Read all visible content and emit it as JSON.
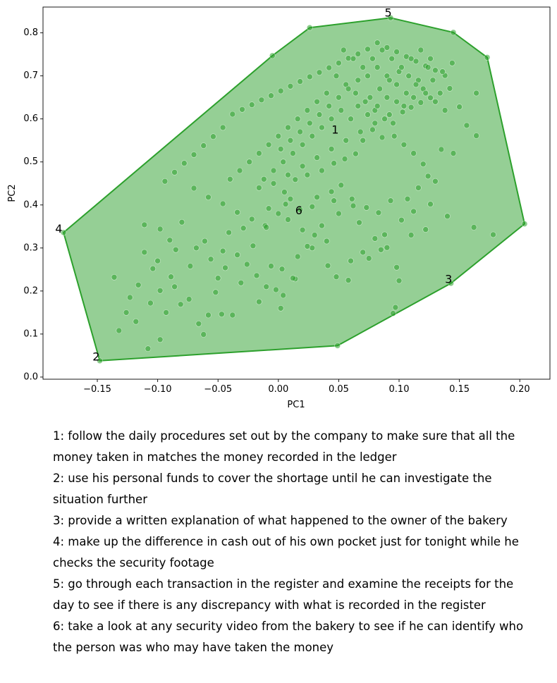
{
  "chart_data": {
    "type": "scatter",
    "title": "",
    "xlabel": "PC1",
    "ylabel": "PC2",
    "xlim": [
      -0.195,
      0.225
    ],
    "ylim": [
      -0.005,
      0.86
    ],
    "x_ticks": [
      -0.15,
      -0.1,
      -0.05,
      0.0,
      0.05,
      0.1,
      0.15,
      0.2
    ],
    "x_tick_labels": [
      "−0.15",
      "−0.10",
      "−0.05",
      "0.00",
      "0.05",
      "0.10",
      "0.15",
      "0.20"
    ],
    "y_ticks": [
      0.0,
      0.1,
      0.2,
      0.3,
      0.4,
      0.5,
      0.6,
      0.7,
      0.8
    ],
    "y_tick_labels": [
      "0.0",
      "0.1",
      "0.2",
      "0.3",
      "0.4",
      "0.5",
      "0.6",
      "0.7",
      "0.8"
    ],
    "color": "#2ca02c",
    "fill_color": "#2ca02c",
    "grid": false,
    "hull": [
      [
        -0.148,
        0.038
      ],
      [
        0.049,
        0.073
      ],
      [
        0.143,
        0.218
      ],
      [
        0.204,
        0.356
      ],
      [
        0.173,
        0.743
      ],
      [
        0.145,
        0.801
      ],
      [
        0.093,
        0.835
      ],
      [
        0.026,
        0.812
      ],
      [
        -0.005,
        0.747
      ],
      [
        -0.178,
        0.336
      ]
    ],
    "annotations": [
      {
        "label": "1",
        "x": 0.047,
        "y": 0.573
      },
      {
        "label": "2",
        "x": -0.151,
        "y": 0.046
      },
      {
        "label": "3",
        "x": 0.141,
        "y": 0.226
      },
      {
        "label": "4",
        "x": -0.182,
        "y": 0.343
      },
      {
        "label": "5",
        "x": 0.091,
        "y": 0.845
      },
      {
        "label": "6",
        "x": 0.017,
        "y": 0.386
      }
    ],
    "points": [
      [
        -0.148,
        0.038
      ],
      [
        -0.178,
        0.336
      ],
      [
        0.204,
        0.356
      ],
      [
        0.143,
        0.218
      ],
      [
        0.049,
        0.073
      ],
      [
        0.093,
        0.835
      ],
      [
        0.173,
        0.743
      ],
      [
        0.145,
        0.801
      ],
      [
        0.026,
        0.812
      ],
      [
        -0.005,
        0.747
      ],
      [
        -0.108,
        0.066
      ],
      [
        -0.098,
        0.087
      ],
      [
        -0.132,
        0.108
      ],
      [
        -0.118,
        0.129
      ],
      [
        -0.093,
        0.15
      ],
      [
        -0.123,
        0.185
      ],
      [
        -0.098,
        0.201
      ],
      [
        -0.081,
        0.169
      ],
      [
        -0.066,
        0.124
      ],
      [
        -0.062,
        0.099
      ],
      [
        -0.058,
        0.144
      ],
      [
        -0.047,
        0.146
      ],
      [
        -0.038,
        0.144
      ],
      [
        -0.031,
        0.219
      ],
      [
        -0.052,
        0.197
      ],
      [
        -0.074,
        0.181
      ],
      [
        -0.089,
        0.233
      ],
      [
        -0.104,
        0.252
      ],
      [
        -0.111,
        0.29
      ],
      [
        -0.098,
        0.344
      ],
      [
        -0.111,
        0.354
      ],
      [
        -0.085,
        0.296
      ],
      [
        -0.073,
        0.258
      ],
      [
        -0.061,
        0.316
      ],
      [
        -0.046,
        0.293
      ],
      [
        -0.041,
        0.336
      ],
      [
        -0.034,
        0.284
      ],
      [
        -0.029,
        0.346
      ],
      [
        -0.021,
        0.305
      ],
      [
        -0.011,
        0.352
      ],
      [
        -0.006,
        0.258
      ],
      [
        0.003,
        0.251
      ],
      [
        0.014,
        0.228
      ],
      [
        -0.002,
        0.203
      ],
      [
        -0.016,
        0.175
      ],
      [
        0.002,
        0.16
      ],
      [
        0.041,
        0.259
      ],
      [
        0.058,
        0.225
      ],
      [
        0.048,
        0.233
      ],
      [
        0.067,
        0.359
      ],
      [
        0.08,
        0.322
      ],
      [
        0.09,
        0.301
      ],
      [
        0.098,
        0.255
      ],
      [
        0.1,
        0.224
      ],
      [
        0.097,
        0.162
      ],
      [
        0.095,
        0.148
      ],
      [
        0.085,
        0.296
      ],
      [
        0.11,
        0.33
      ],
      [
        0.122,
        0.343
      ],
      [
        0.14,
        0.374
      ],
      [
        0.162,
        0.348
      ],
      [
        0.178,
        0.331
      ],
      [
        0.164,
        0.561
      ],
      [
        0.15,
        0.628
      ],
      [
        0.164,
        0.66
      ],
      [
        0.156,
        0.585
      ],
      [
        0.135,
        0.529
      ],
      [
        0.145,
        0.52
      ],
      [
        0.124,
        0.467
      ],
      [
        0.107,
        0.414
      ],
      [
        0.116,
        0.44
      ],
      [
        0.093,
        0.41
      ],
      [
        0.083,
        0.382
      ],
      [
        0.073,
        0.394
      ],
      [
        0.061,
        0.414
      ],
      [
        0.052,
        0.446
      ],
      [
        0.044,
        0.431
      ],
      [
        0.032,
        0.418
      ],
      [
        0.018,
        0.389
      ],
      [
        0.01,
        0.414
      ],
      [
        0.005,
        0.43
      ],
      [
        0.014,
        0.459
      ],
      [
        0.024,
        0.47
      ],
      [
        0.036,
        0.48
      ],
      [
        0.046,
        0.497
      ],
      [
        0.055,
        0.507
      ],
      [
        0.064,
        0.519
      ],
      [
        0.07,
        0.55
      ],
      [
        0.078,
        0.575
      ],
      [
        0.086,
        0.557
      ],
      [
        0.095,
        0.59
      ],
      [
        0.103,
        0.616
      ],
      [
        0.11,
        0.627
      ],
      [
        0.118,
        0.638
      ],
      [
        0.126,
        0.649
      ],
      [
        0.134,
        0.66
      ],
      [
        0.142,
        0.671
      ],
      [
        0.138,
        0.701
      ],
      [
        0.13,
        0.713
      ],
      [
        0.122,
        0.723
      ],
      [
        0.114,
        0.734
      ],
      [
        0.106,
        0.745
      ],
      [
        0.098,
        0.756
      ],
      [
        0.09,
        0.766
      ],
      [
        0.082,
        0.777
      ],
      [
        0.074,
        0.762
      ],
      [
        0.066,
        0.751
      ],
      [
        0.058,
        0.741
      ],
      [
        0.05,
        0.73
      ],
      [
        0.042,
        0.719
      ],
      [
        0.034,
        0.708
      ],
      [
        0.026,
        0.698
      ],
      [
        0.018,
        0.687
      ],
      [
        0.01,
        0.676
      ],
      [
        0.002,
        0.665
      ],
      [
        -0.006,
        0.654
      ],
      [
        -0.014,
        0.644
      ],
      [
        -0.022,
        0.633
      ],
      [
        -0.03,
        0.622
      ],
      [
        -0.038,
        0.611
      ],
      [
        -0.046,
        0.58
      ],
      [
        -0.054,
        0.559
      ],
      [
        -0.062,
        0.538
      ],
      [
        -0.07,
        0.517
      ],
      [
        -0.078,
        0.497
      ],
      [
        -0.086,
        0.476
      ],
      [
        -0.094,
        0.455
      ],
      [
        -0.07,
        0.439
      ],
      [
        -0.058,
        0.418
      ],
      [
        -0.046,
        0.403
      ],
      [
        -0.034,
        0.383
      ],
      [
        -0.022,
        0.367
      ],
      [
        -0.01,
        0.348
      ],
      [
        0.0,
        0.38
      ],
      [
        0.008,
        0.366
      ],
      [
        0.02,
        0.342
      ],
      [
        0.03,
        0.33
      ],
      [
        0.04,
        0.316
      ],
      [
        0.028,
        0.3
      ],
      [
        0.016,
        0.28
      ],
      [
        0.06,
        0.27
      ],
      [
        0.07,
        0.29
      ],
      [
        0.075,
        0.276
      ],
      [
        0.088,
        0.331
      ],
      [
        0.102,
        0.365
      ],
      [
        0.112,
        0.385
      ],
      [
        0.126,
        0.402
      ],
      [
        0.13,
        0.455
      ],
      [
        0.12,
        0.495
      ],
      [
        0.112,
        0.52
      ],
      [
        0.104,
        0.54
      ],
      [
        0.096,
        0.56
      ],
      [
        0.088,
        0.6
      ],
      [
        0.08,
        0.62
      ],
      [
        0.072,
        0.64
      ],
      [
        0.064,
        0.66
      ],
      [
        0.056,
        0.68
      ],
      [
        0.048,
        0.7
      ],
      [
        0.04,
        0.66
      ],
      [
        0.032,
        0.64
      ],
      [
        0.024,
        0.62
      ],
      [
        0.016,
        0.6
      ],
      [
        0.008,
        0.58
      ],
      [
        0.0,
        0.56
      ],
      [
        -0.008,
        0.54
      ],
      [
        -0.016,
        0.52
      ],
      [
        -0.024,
        0.5
      ],
      [
        -0.032,
        0.48
      ],
      [
        -0.04,
        0.46
      ],
      [
        -0.016,
        0.44
      ],
      [
        -0.004,
        0.45
      ],
      [
        0.008,
        0.47
      ],
      [
        0.02,
        0.49
      ],
      [
        0.032,
        0.51
      ],
      [
        0.044,
        0.53
      ],
      [
        0.056,
        0.55
      ],
      [
        0.068,
        0.57
      ],
      [
        0.08,
        0.59
      ],
      [
        0.092,
        0.61
      ],
      [
        0.104,
        0.63
      ],
      [
        0.112,
        0.65
      ],
      [
        0.12,
        0.67
      ],
      [
        0.128,
        0.69
      ],
      [
        0.136,
        0.71
      ],
      [
        0.144,
        0.73
      ],
      [
        0.098,
        0.68
      ],
      [
        0.09,
        0.7
      ],
      [
        0.082,
        0.72
      ],
      [
        0.074,
        0.7
      ],
      [
        0.066,
        0.69
      ],
      [
        0.058,
        0.67
      ],
      [
        0.05,
        0.65
      ],
      [
        0.042,
        0.63
      ],
      [
        0.034,
        0.61
      ],
      [
        0.026,
        0.59
      ],
      [
        0.018,
        0.57
      ],
      [
        0.01,
        0.55
      ],
      [
        0.002,
        0.53
      ],
      [
        0.076,
        0.65
      ],
      [
        0.084,
        0.67
      ],
      [
        0.092,
        0.69
      ],
      [
        0.1,
        0.71
      ],
      [
        0.108,
        0.7
      ],
      [
        0.116,
        0.69
      ],
      [
        0.124,
        0.72
      ],
      [
        0.06,
        0.6
      ],
      [
        0.052,
        0.62
      ],
      [
        0.044,
        0.6
      ],
      [
        0.036,
        0.58
      ],
      [
        0.028,
        0.56
      ],
      [
        0.02,
        0.54
      ],
      [
        0.012,
        0.52
      ],
      [
        0.004,
        0.5
      ],
      [
        -0.004,
        0.48
      ],
      [
        -0.012,
        0.46
      ],
      [
        0.07,
        0.72
      ],
      [
        0.062,
        0.74
      ],
      [
        0.054,
        0.76
      ],
      [
        0.078,
        0.74
      ],
      [
        0.086,
        0.76
      ],
      [
        0.094,
        0.74
      ],
      [
        0.102,
        0.72
      ],
      [
        0.11,
        0.74
      ],
      [
        0.118,
        0.76
      ],
      [
        0.126,
        0.74
      ],
      [
        0.066,
        0.63
      ],
      [
        0.074,
        0.61
      ],
      [
        0.082,
        0.63
      ],
      [
        0.09,
        0.65
      ],
      [
        0.098,
        0.64
      ],
      [
        0.106,
        0.66
      ],
      [
        0.114,
        0.68
      ],
      [
        0.122,
        0.66
      ],
      [
        0.13,
        0.64
      ],
      [
        0.138,
        0.62
      ],
      [
        -0.126,
        0.15
      ],
      [
        -0.116,
        0.214
      ],
      [
        -0.136,
        0.232
      ],
      [
        -0.106,
        0.172
      ],
      [
        -0.086,
        0.21
      ],
      [
        -0.1,
        0.27
      ],
      [
        -0.09,
        0.318
      ],
      [
        -0.08,
        0.36
      ],
      [
        -0.068,
        0.3
      ],
      [
        -0.056,
        0.274
      ],
      [
        -0.05,
        0.23
      ],
      [
        -0.044,
        0.254
      ],
      [
        -0.026,
        0.262
      ],
      [
        -0.018,
        0.236
      ],
      [
        -0.01,
        0.21
      ],
      [
        0.004,
        0.19
      ],
      [
        0.012,
        0.23
      ],
      [
        0.024,
        0.304
      ],
      [
        0.036,
        0.352
      ],
      [
        0.05,
        0.38
      ],
      [
        0.062,
        0.398
      ],
      [
        0.046,
        0.41
      ],
      [
        0.028,
        0.396
      ],
      [
        0.006,
        0.402
      ],
      [
        -0.008,
        0.392
      ]
    ]
  },
  "legend_items": [
    "1: follow the daily procedures set out by the company to make sure that all the money taken in matches the money recorded in the ledger",
    "2: use his personal funds to cover the shortage until he can investigate the situation further",
    "3: provide a written explanation of what happened to the owner of the bakery",
    "4: make up the difference in cash out of his own pocket just for tonight while he checks the security footage",
    "5: go through each transaction in the register and examine the receipts for the day to see if there is any discrepancy with what is recorded in the register",
    "6: take a look at any security video from the bakery to see if he can identify who the person was who may have taken the money"
  ]
}
